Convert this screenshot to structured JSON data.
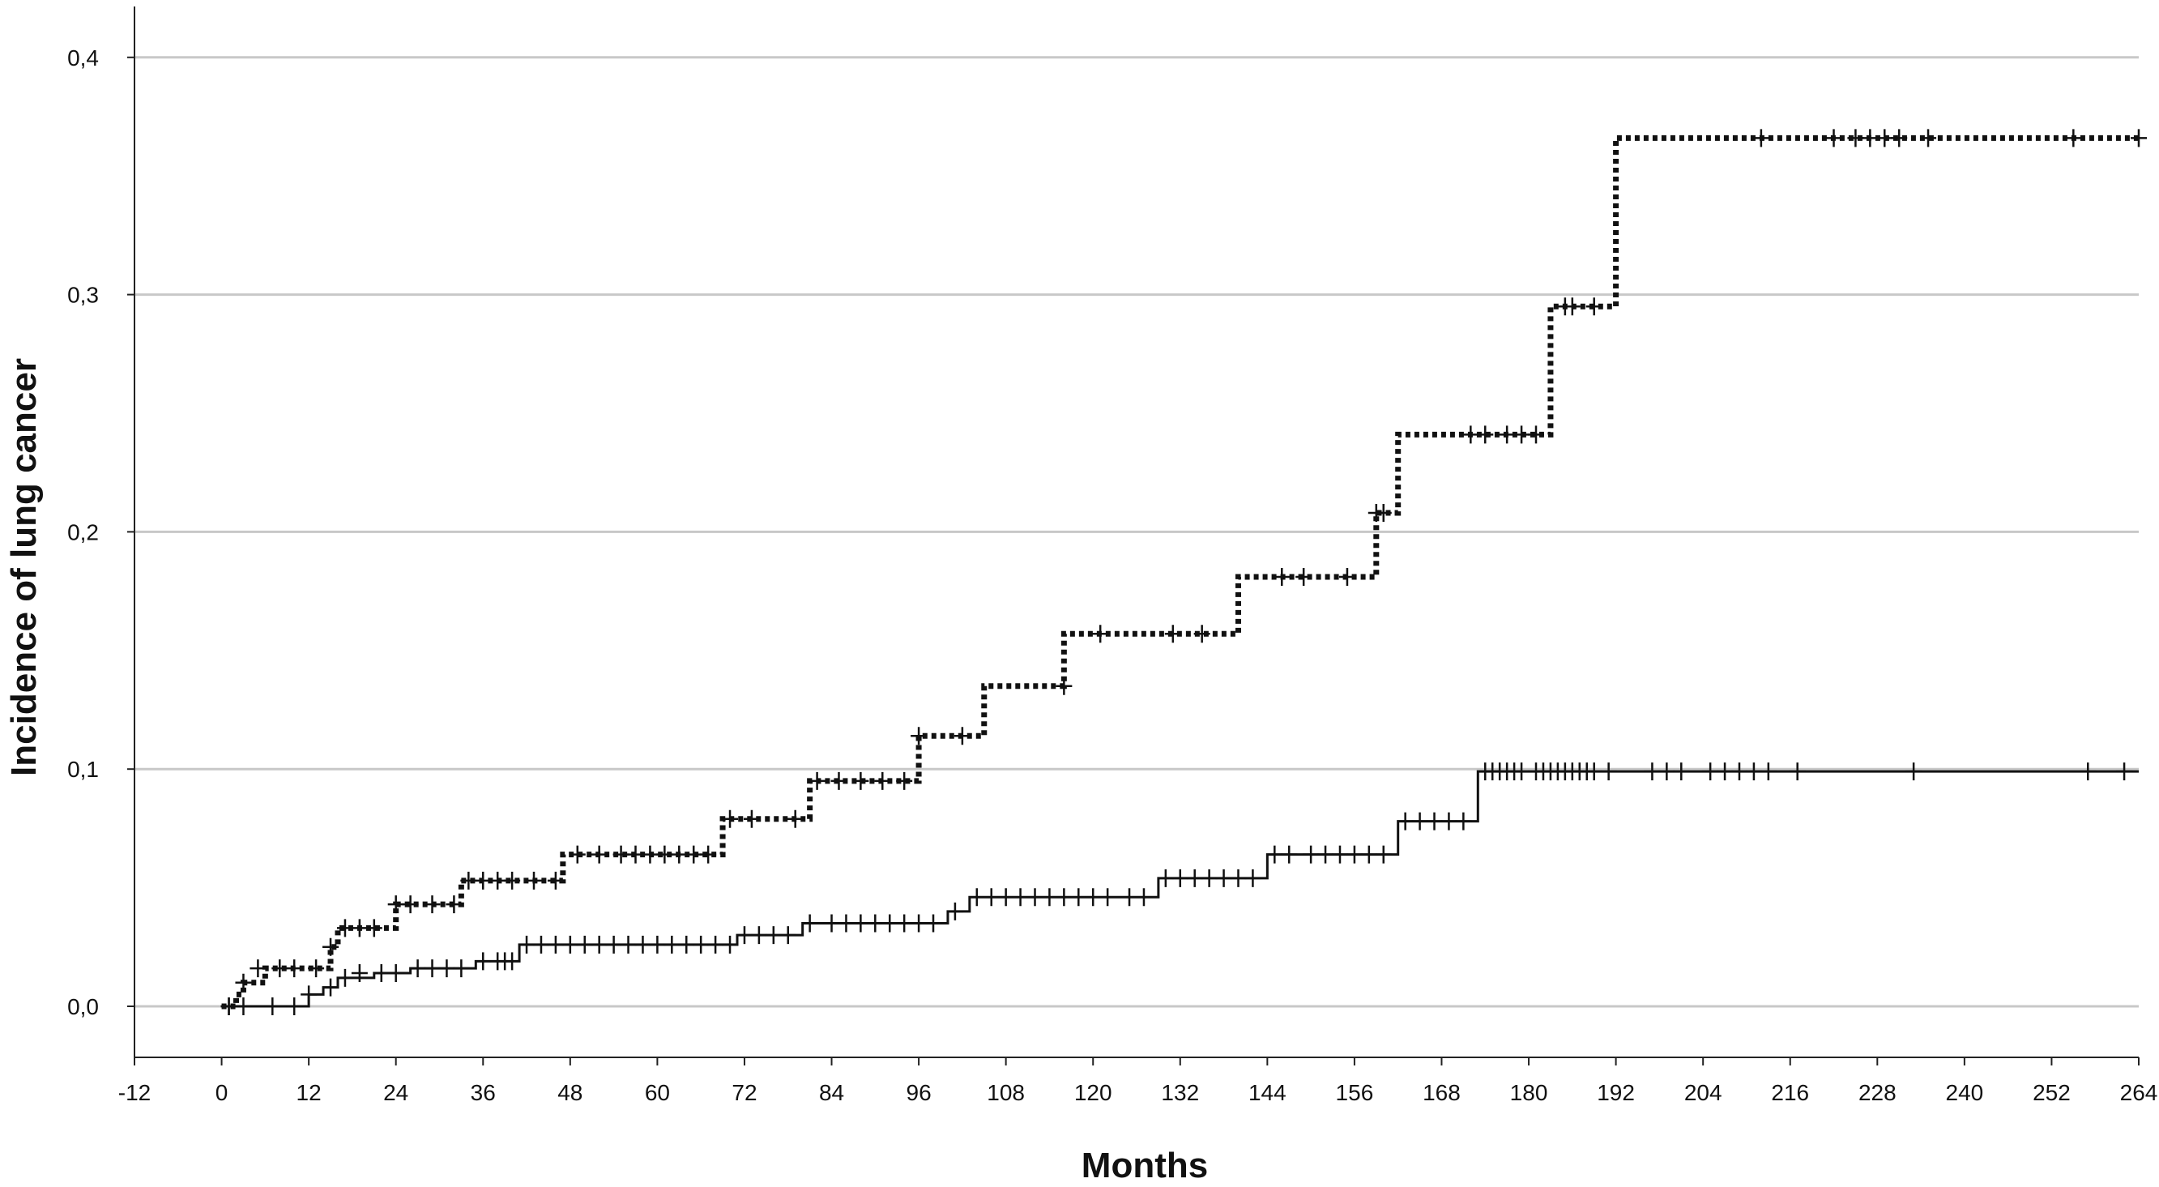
{
  "chart_data": {
    "type": "line",
    "step": true,
    "title": "",
    "xlabel": "Months",
    "ylabel": "Incidence of lung cancer",
    "xlim": [
      -12,
      264
    ],
    "ylim": [
      0,
      0.4
    ],
    "x_ticks": [
      -12,
      0,
      12,
      24,
      36,
      48,
      60,
      72,
      84,
      96,
      108,
      120,
      132,
      144,
      156,
      168,
      180,
      192,
      204,
      216,
      228,
      240,
      252,
      264
    ],
    "x_tick_labels": [
      "-12",
      "0",
      "12",
      "24",
      "36",
      "48",
      "60",
      "72",
      "84",
      "96",
      "108",
      "120",
      "132",
      "144",
      "156",
      "168",
      "180",
      "192",
      "204",
      "216",
      "228",
      "240",
      "252",
      "264"
    ],
    "y_ticks": [
      0,
      0.1,
      0.2,
      0.3,
      0.4
    ],
    "y_tick_labels": [
      "0,0",
      "0,1",
      "0,2",
      "0,3",
      "0,4"
    ],
    "grid": "horizontal",
    "legend": "none",
    "series": [
      {
        "style": "dotted",
        "color": "#111111",
        "steps": [
          [
            0,
            0.0
          ],
          [
            2,
            0.005
          ],
          [
            3,
            0.01
          ],
          [
            6,
            0.016
          ],
          [
            15,
            0.025
          ],
          [
            16,
            0.033
          ],
          [
            24,
            0.043
          ],
          [
            33,
            0.053
          ],
          [
            47,
            0.064
          ],
          [
            69,
            0.079
          ],
          [
            81,
            0.095
          ],
          [
            96,
            0.114
          ],
          [
            105,
            0.135
          ],
          [
            116,
            0.157
          ],
          [
            140,
            0.181
          ],
          [
            159,
            0.208
          ],
          [
            162,
            0.241
          ],
          [
            183,
            0.295
          ],
          [
            192,
            0.366
          ],
          [
            264,
            0.366
          ]
        ],
        "censored": [
          [
            1,
            0.0
          ],
          [
            3,
            0.01
          ],
          [
            5,
            0.016
          ],
          [
            8,
            0.016
          ],
          [
            10,
            0.016
          ],
          [
            13,
            0.016
          ],
          [
            15,
            0.025
          ],
          [
            17,
            0.033
          ],
          [
            19,
            0.033
          ],
          [
            21,
            0.033
          ],
          [
            24,
            0.043
          ],
          [
            26,
            0.043
          ],
          [
            29,
            0.043
          ],
          [
            32,
            0.043
          ],
          [
            34,
            0.053
          ],
          [
            36,
            0.053
          ],
          [
            38,
            0.053
          ],
          [
            40,
            0.053
          ],
          [
            43,
            0.053
          ],
          [
            46,
            0.053
          ],
          [
            49,
            0.064
          ],
          [
            52,
            0.064
          ],
          [
            55,
            0.064
          ],
          [
            57,
            0.064
          ],
          [
            59,
            0.064
          ],
          [
            61,
            0.064
          ],
          [
            63,
            0.064
          ],
          [
            65,
            0.064
          ],
          [
            67,
            0.064
          ],
          [
            70,
            0.079
          ],
          [
            73,
            0.079
          ],
          [
            79,
            0.079
          ],
          [
            82,
            0.095
          ],
          [
            85,
            0.095
          ],
          [
            88,
            0.095
          ],
          [
            91,
            0.095
          ],
          [
            94,
            0.095
          ],
          [
            96,
            0.114
          ],
          [
            102,
            0.114
          ],
          [
            116,
            0.135
          ],
          [
            121,
            0.157
          ],
          [
            131,
            0.157
          ],
          [
            135,
            0.157
          ],
          [
            146,
            0.181
          ],
          [
            149,
            0.181
          ],
          [
            155,
            0.181
          ],
          [
            159,
            0.208
          ],
          [
            160,
            0.208
          ],
          [
            172,
            0.241
          ],
          [
            174,
            0.241
          ],
          [
            177,
            0.241
          ],
          [
            179,
            0.241
          ],
          [
            181,
            0.241
          ],
          [
            185,
            0.295
          ],
          [
            186,
            0.295
          ],
          [
            189,
            0.295
          ],
          [
            212,
            0.366
          ],
          [
            222,
            0.366
          ],
          [
            225,
            0.366
          ],
          [
            227,
            0.366
          ],
          [
            229,
            0.366
          ],
          [
            231,
            0.366
          ],
          [
            235,
            0.366
          ],
          [
            255,
            0.366
          ],
          [
            264,
            0.366
          ]
        ]
      },
      {
        "style": "solid",
        "color": "#111111",
        "steps": [
          [
            0,
            0.0
          ],
          [
            12,
            0.005
          ],
          [
            14,
            0.008
          ],
          [
            16,
            0.012
          ],
          [
            21,
            0.014
          ],
          [
            26,
            0.016
          ],
          [
            35,
            0.019
          ],
          [
            41,
            0.026
          ],
          [
            71,
            0.03
          ],
          [
            80,
            0.035
          ],
          [
            100,
            0.04
          ],
          [
            103,
            0.046
          ],
          [
            129,
            0.054
          ],
          [
            144,
            0.064
          ],
          [
            162,
            0.078
          ],
          [
            173,
            0.099
          ],
          [
            264,
            0.099
          ]
        ],
        "censored": [
          [
            1,
            0.0
          ],
          [
            3,
            0.0
          ],
          [
            7,
            0.0
          ],
          [
            10,
            0.0
          ],
          [
            12,
            0.005
          ],
          [
            15,
            0.008
          ],
          [
            17,
            0.012
          ],
          [
            19,
            0.014
          ],
          [
            22,
            0.014
          ],
          [
            24,
            0.014
          ],
          [
            27,
            0.016
          ],
          [
            29,
            0.016
          ],
          [
            31,
            0.016
          ],
          [
            33,
            0.016
          ],
          [
            36,
            0.019
          ],
          [
            38,
            0.019
          ],
          [
            39,
            0.019
          ],
          [
            40,
            0.019
          ],
          [
            42,
            0.026
          ],
          [
            44,
            0.026
          ],
          [
            46,
            0.026
          ],
          [
            48,
            0.026
          ],
          [
            50,
            0.026
          ],
          [
            52,
            0.026
          ],
          [
            54,
            0.026
          ],
          [
            56,
            0.026
          ],
          [
            58,
            0.026
          ],
          [
            60,
            0.026
          ],
          [
            62,
            0.026
          ],
          [
            64,
            0.026
          ],
          [
            66,
            0.026
          ],
          [
            68,
            0.026
          ],
          [
            70,
            0.026
          ],
          [
            72,
            0.03
          ],
          [
            74,
            0.03
          ],
          [
            76,
            0.03
          ],
          [
            78,
            0.03
          ],
          [
            81,
            0.035
          ],
          [
            84,
            0.035
          ],
          [
            86,
            0.035
          ],
          [
            88,
            0.035
          ],
          [
            90,
            0.035
          ],
          [
            92,
            0.035
          ],
          [
            94,
            0.035
          ],
          [
            96,
            0.035
          ],
          [
            98,
            0.035
          ],
          [
            101,
            0.04
          ],
          [
            104,
            0.046
          ],
          [
            106,
            0.046
          ],
          [
            108,
            0.046
          ],
          [
            110,
            0.046
          ],
          [
            112,
            0.046
          ],
          [
            114,
            0.046
          ],
          [
            116,
            0.046
          ],
          [
            118,
            0.046
          ],
          [
            120,
            0.046
          ],
          [
            122,
            0.046
          ],
          [
            125,
            0.046
          ],
          [
            127,
            0.046
          ],
          [
            130,
            0.054
          ],
          [
            132,
            0.054
          ],
          [
            134,
            0.054
          ],
          [
            136,
            0.054
          ],
          [
            138,
            0.054
          ],
          [
            140,
            0.054
          ],
          [
            142,
            0.054
          ],
          [
            145,
            0.064
          ],
          [
            147,
            0.064
          ],
          [
            150,
            0.064
          ],
          [
            152,
            0.064
          ],
          [
            154,
            0.064
          ],
          [
            156,
            0.064
          ],
          [
            158,
            0.064
          ],
          [
            160,
            0.064
          ],
          [
            163,
            0.078
          ],
          [
            165,
            0.078
          ],
          [
            167,
            0.078
          ],
          [
            169,
            0.078
          ],
          [
            171,
            0.078
          ],
          [
            174,
            0.099
          ],
          [
            175,
            0.099
          ],
          [
            176,
            0.099
          ],
          [
            177,
            0.099
          ],
          [
            178,
            0.099
          ],
          [
            179,
            0.099
          ],
          [
            181,
            0.099
          ],
          [
            182,
            0.099
          ],
          [
            183,
            0.099
          ],
          [
            184,
            0.099
          ],
          [
            185,
            0.099
          ],
          [
            186,
            0.099
          ],
          [
            187,
            0.099
          ],
          [
            188,
            0.099
          ],
          [
            189,
            0.099
          ],
          [
            191,
            0.099
          ],
          [
            197,
            0.099
          ],
          [
            199,
            0.099
          ],
          [
            201,
            0.099
          ],
          [
            205,
            0.099
          ],
          [
            207,
            0.099
          ],
          [
            209,
            0.099
          ],
          [
            211,
            0.099
          ],
          [
            213,
            0.099
          ],
          [
            217,
            0.099
          ],
          [
            233,
            0.099
          ],
          [
            257,
            0.099
          ],
          [
            262,
            0.099
          ]
        ]
      }
    ]
  }
}
